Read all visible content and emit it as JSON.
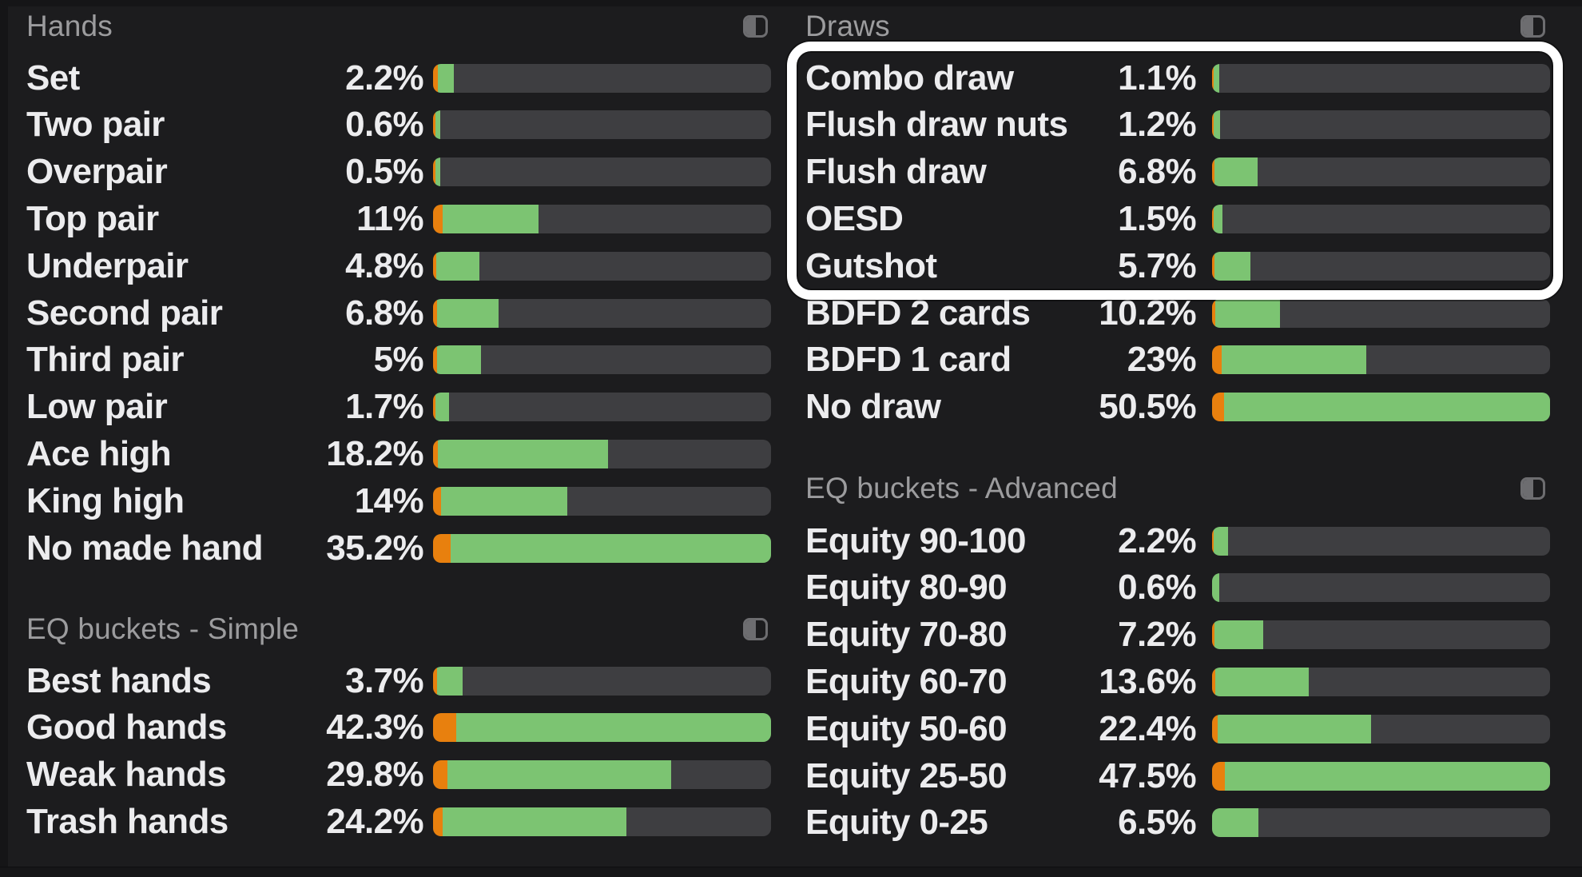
{
  "colors": {
    "background": "#1c1c1e",
    "bar_track": "#3e3e41",
    "bar_green": "#7cc472",
    "bar_orange": "#e8800e",
    "label_text": "#ececee",
    "header_text": "#9c9c9e",
    "highlight_border": "#ffffff"
  },
  "sections": [
    {
      "id": "hands",
      "title": "Hands",
      "icon": "split-square-icon",
      "max_value": 35.2,
      "rows": [
        {
          "label": "Set",
          "value": "2.2%",
          "pct": 2.2,
          "orange": 0.014
        },
        {
          "label": "Two pair",
          "value": "0.6%",
          "pct": 0.6,
          "orange": 0.007
        },
        {
          "label": "Overpair",
          "value": "0.5%",
          "pct": 0.5,
          "orange": 0.008
        },
        {
          "label": "Top pair",
          "value": "11%",
          "pct": 11,
          "orange": 0.028
        },
        {
          "label": "Underpair",
          "value": "4.8%",
          "pct": 4.8,
          "orange": 0.01
        },
        {
          "label": "Second pair",
          "value": "6.8%",
          "pct": 6.8,
          "orange": 0.012
        },
        {
          "label": "Third pair",
          "value": "5%",
          "pct": 5,
          "orange": 0.012
        },
        {
          "label": "Low pair",
          "value": "1.7%",
          "pct": 1.7,
          "orange": 0.006
        },
        {
          "label": "Ace high",
          "value": "18.2%",
          "pct": 18.2,
          "orange": 0.014
        },
        {
          "label": "King high",
          "value": "14%",
          "pct": 14,
          "orange": 0.024
        },
        {
          "label": "No made hand",
          "value": "35.2%",
          "pct": 35.2,
          "orange": 0.052
        }
      ]
    },
    {
      "id": "eq-buckets-simple",
      "title": "EQ buckets - Simple",
      "icon": "split-square-icon",
      "max_value": 42.3,
      "rows": [
        {
          "label": "Best hands",
          "value": "3.7%",
          "pct": 3.7,
          "orange": 0.012
        },
        {
          "label": "Good hands",
          "value": "42.3%",
          "pct": 42.3,
          "orange": 0.068
        },
        {
          "label": "Weak hands",
          "value": "29.8%",
          "pct": 29.8,
          "orange": 0.042
        },
        {
          "label": "Trash hands",
          "value": "24.2%",
          "pct": 24.2,
          "orange": 0.028
        }
      ]
    },
    {
      "id": "draws",
      "title": "Draws",
      "icon": "split-square-icon",
      "max_value": 50.5,
      "rows": [
        {
          "label": "Combo draw",
          "value": "1.1%",
          "pct": 1.1,
          "orange": 0.004
        },
        {
          "label": "Flush draw nuts",
          "value": "1.2%",
          "pct": 1.2,
          "orange": 0.004
        },
        {
          "label": "Flush draw",
          "value": "6.8%",
          "pct": 6.8,
          "orange": 0.006
        },
        {
          "label": "OESD",
          "value": "1.5%",
          "pct": 1.5,
          "orange": 0.004
        },
        {
          "label": "Gutshot",
          "value": "5.7%",
          "pct": 5.7,
          "orange": 0.006
        },
        {
          "label": "BDFD 2 cards",
          "value": "10.2%",
          "pct": 10.2,
          "orange": 0.009
        },
        {
          "label": "BDFD 1 card",
          "value": "23%",
          "pct": 23,
          "orange": 0.028
        },
        {
          "label": "No draw",
          "value": "50.5%",
          "pct": 50.5,
          "orange": 0.036
        }
      ]
    },
    {
      "id": "eq-buckets-advanced",
      "title": "EQ buckets - Advanced",
      "icon": "split-square-icon",
      "max_value": 47.5,
      "rows": [
        {
          "label": "Equity 90-100",
          "value": "2.2%",
          "pct": 2.2,
          "orange": 0.005
        },
        {
          "label": "Equity 80-90",
          "value": "0.6%",
          "pct": 0.6,
          "orange": 0
        },
        {
          "label": "Equity 70-80",
          "value": "7.2%",
          "pct": 7.2,
          "orange": 0.007
        },
        {
          "label": "Equity 60-70",
          "value": "13.6%",
          "pct": 13.6,
          "orange": 0.009
        },
        {
          "label": "Equity 50-60",
          "value": "22.4%",
          "pct": 22.4,
          "orange": 0.016
        },
        {
          "label": "Equity 25-50",
          "value": "47.5%",
          "pct": 47.5,
          "orange": 0.038
        },
        {
          "label": "Equity 0-25",
          "value": "6.5%",
          "pct": 6.5,
          "orange": 0
        }
      ]
    }
  ],
  "highlight_box": {
    "section": "Draws",
    "first_row": "Combo draw",
    "last_row": "Gutshot"
  }
}
